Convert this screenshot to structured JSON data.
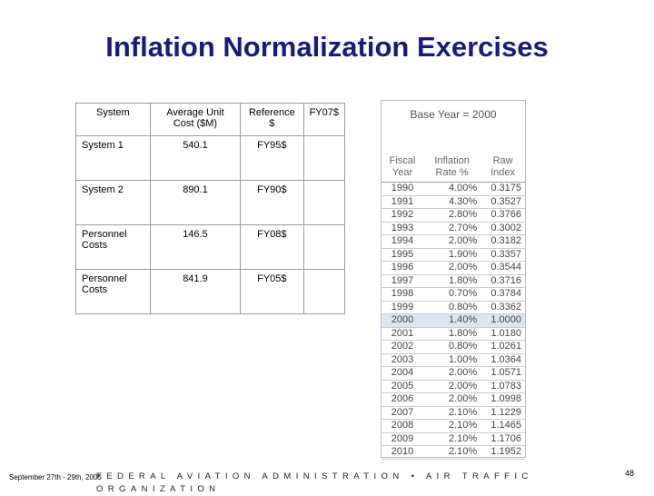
{
  "title": "Inflation Normalization Exercises",
  "left_table": {
    "header": [
      "System",
      "Average Unit Cost ($M)",
      "Reference $",
      "FY07$"
    ],
    "rows": [
      [
        "System 1",
        "540.1",
        "FY95$"
      ],
      [
        "System 2",
        "890.1",
        "FY90$"
      ],
      [
        "Personnel Costs",
        "146.5",
        "FY08$"
      ],
      [
        "Personnel Costs",
        "841.9",
        "FY05$"
      ]
    ]
  },
  "right_table": {
    "title": "Base Year = 2000",
    "header": [
      "Fiscal Year",
      "Inflation Rate %",
      "Raw Index"
    ],
    "rows": [
      [
        "1990",
        "4.00%",
        "0.3175"
      ],
      [
        "1991",
        "4.30%",
        "0.3527"
      ],
      [
        "1992",
        "2.80%",
        "0.3766"
      ],
      [
        "1993",
        "2.70%",
        "0.3002"
      ],
      [
        "1994",
        "2.00%",
        "0.3182"
      ],
      [
        "1995",
        "1.90%",
        "0.3357"
      ],
      [
        "1996",
        "2.00%",
        "0.3544"
      ],
      [
        "1997",
        "1.80%",
        "0.3716"
      ],
      [
        "1998",
        "0.70%",
        "0.3784"
      ],
      [
        "1999",
        "0.80%",
        "0.3362"
      ],
      [
        "2000",
        "1.40%",
        "1.0000"
      ],
      [
        "2001",
        "1.80%",
        "1.0180"
      ],
      [
        "2002",
        "0.80%",
        "1.0261"
      ],
      [
        "2003",
        "1.00%",
        "1.0364"
      ],
      [
        "2004",
        "2.00%",
        "1.0571"
      ],
      [
        "2005",
        "2.00%",
        "1.0783"
      ],
      [
        "2006",
        "2.00%",
        "1.0998"
      ],
      [
        "2007",
        "2.10%",
        "1.1229"
      ],
      [
        "2008",
        "2.10%",
        "1.1465"
      ],
      [
        "2009",
        "2.10%",
        "1.1706"
      ],
      [
        "2010",
        "2.10%",
        "1.1952"
      ]
    ],
    "highlight_row": 10
  },
  "footer": {
    "date": "September 27th - 29th, 2005",
    "organization": "FEDERAL AVIATION ADMINISTRATION • AIR TRAFFIC ORGANIZATION",
    "page": "48"
  }
}
